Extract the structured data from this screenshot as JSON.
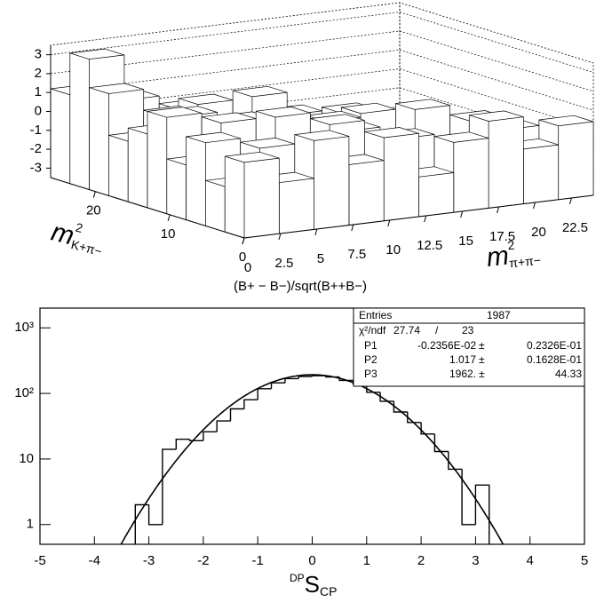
{
  "chart_data": [
    {
      "type": "lego",
      "title": "(B+ − B−)/sqrt(B++B−)",
      "xlabel": {
        "symbol": "m",
        "power": "2",
        "index": "π+π−"
      },
      "ylabel": {
        "symbol": "m",
        "power": "2",
        "index": "K+π−"
      },
      "xlim": [
        0,
        24
      ],
      "ylim": [
        0,
        26
      ],
      "zlim": [
        -3.5,
        3.5
      ],
      "xticks": [
        0,
        2.5,
        5,
        7.5,
        10,
        12.5,
        15,
        17.5,
        20,
        22.5
      ],
      "yticks": [
        0,
        10,
        20
      ],
      "zticks": [
        -3,
        -2,
        -1,
        0,
        1,
        2,
        3
      ],
      "grid": true,
      "color": "#ffffff",
      "z": [
        [
          0.5,
          -0.8,
          1.2,
          -0.3,
          0.9,
          -1.4,
          0.2,
          1.1,
          -0.6,
          0.4
        ],
        [
          -1.1,
          0.7,
          -0.2,
          1.5,
          -0.9,
          0.3,
          -1.6,
          0.8,
          0.1,
          -0.5
        ],
        [
          0.9,
          -0.4,
          1.8,
          -1.2,
          0.6,
          -0.1,
          1.3,
          -0.7,
          0.2,
          null
        ],
        [
          -0.6,
          1.4,
          0.3,
          -1.8,
          0.8,
          1.0,
          -0.3,
          null,
          null,
          null
        ],
        [
          1.6,
          -0.5,
          0.9,
          0.2,
          -1.3,
          0.7,
          null,
          null,
          null,
          null
        ],
        [
          0.4,
          1.1,
          -0.9,
          1.7,
          0.5,
          null,
          null,
          null,
          null,
          null
        ],
        [
          -0.3,
          0.8,
          1.2,
          -0.7,
          null,
          null,
          null,
          null,
          null,
          null
        ],
        [
          1.9,
          -0.2,
          0.6,
          null,
          null,
          null,
          null,
          null,
          null,
          null
        ],
        [
          3.4,
          1.0,
          null,
          null,
          null,
          null,
          null,
          null,
          null,
          null
        ],
        [
          1.2,
          null,
          null,
          null,
          null,
          null,
          null,
          null,
          null,
          null
        ]
      ]
    },
    {
      "type": "histogram",
      "log_y": true,
      "color": "#000000",
      "xlabel": {
        "pre": "DP",
        "main": "S",
        "sub": "CP"
      },
      "bins": [
        -3.25,
        -3,
        -2.75,
        -2.5,
        -2.25,
        -2,
        -1.75,
        -1.5,
        -1.25,
        -1,
        -0.75,
        -0.5,
        -0.25,
        0,
        0.25,
        0.5,
        0.75,
        1,
        1.25,
        1.5,
        1.75,
        2,
        2.25,
        2.5,
        2.75,
        3,
        3.25
      ],
      "counts": [
        2,
        1,
        14,
        20,
        19,
        26,
        38,
        58,
        80,
        118,
        145,
        168,
        181,
        186,
        178,
        158,
        140,
        104,
        76,
        52,
        36,
        24,
        13,
        7,
        1,
        4
      ],
      "xlim": [
        -5,
        5
      ],
      "ylim": [
        0.5,
        2000
      ],
      "xticks": [
        -5,
        -4,
        -3,
        -2,
        -1,
        0,
        1,
        2,
        3,
        4,
        5
      ],
      "yticks": [
        1,
        10,
        {
          "value": 100,
          "label": "10²"
        },
        {
          "value": 1000,
          "label": "10³"
        }
      ],
      "stats": {
        "entries_label": "Entries",
        "entries": 1987,
        "chi2_label": "χ²/ndf",
        "chi2": 27.74,
        "ndf_sep": "/",
        "ndf": 23,
        "separator": "±",
        "params": [
          {
            "name": "P1",
            "value": -0.002356,
            "value_label": "-0.2356E-02",
            "error": 0.02326,
            "error_label": "0.2326E-01"
          },
          {
            "name": "P2",
            "value": 1.017,
            "error": 0.01628,
            "error_label": "0.1628E-01"
          },
          {
            "name": "P3",
            "value": 1962,
            "value_label": "1962.",
            "error": 44.33
          }
        ]
      }
    }
  ]
}
